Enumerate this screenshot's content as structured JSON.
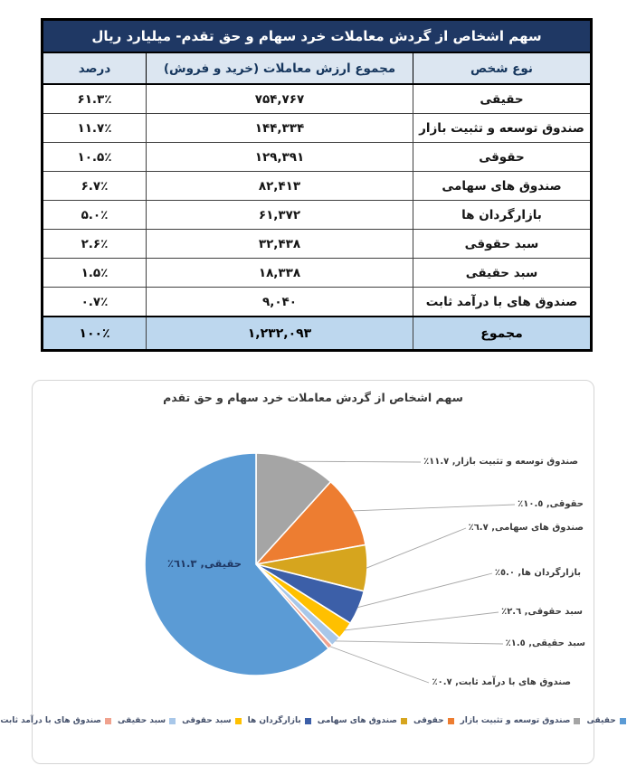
{
  "table": {
    "title": "سهم اشخاص از گردش معاملات خرد سهام و حق تقدم- میلیارد ریال",
    "title_bg": "#1F3864",
    "header_bg": "#DCE6F1",
    "header_color": "#17375E",
    "total_bg": "#BDD7EE",
    "columns": {
      "type": "نوع شخص",
      "value": "مجموع ارزش معاملات (خرید و فروش)",
      "percent": "درصد"
    },
    "rows": [
      {
        "type": "حقیقی",
        "value": "۷۵۴,۷۶۷",
        "percent": "۶۱.۳٪"
      },
      {
        "type": "صندوق توسعه و تثبیت بازار",
        "value": "۱۴۴,۳۳۴",
        "percent": "۱۱.۷٪"
      },
      {
        "type": "حقوقی",
        "value": "۱۲۹,۳۹۱",
        "percent": "۱۰.۵٪"
      },
      {
        "type": "صندوق های سهامی",
        "value": "۸۲,۴۱۳",
        "percent": "۶.۷٪"
      },
      {
        "type": "بازارگردان ها",
        "value": "۶۱,۳۷۲",
        "percent": "۵.۰٪"
      },
      {
        "type": "سبد حقوقی",
        "value": "۳۲,۴۳۸",
        "percent": "۲.۶٪"
      },
      {
        "type": "سبد حقیقی",
        "value": "۱۸,۳۳۸",
        "percent": "۱.۵٪"
      },
      {
        "type": "صندوق های با درآمد ثابت",
        "value": "۹,۰۴۰",
        "percent": "۰.۷٪"
      }
    ],
    "total": {
      "type": "مجموع",
      "value": "۱,۲۳۲,۰۹۳",
      "percent": "۱۰۰٪"
    }
  },
  "chart_data": {
    "type": "pie",
    "title": "سهم اشخاص از گردش معاملات خرد سهام و حق تقدم",
    "legend_position": "bottom",
    "start_angle_deg": 0,
    "direction": "clockwise-small-slices-first",
    "slices": [
      {
        "label": "حقیقی",
        "percent": 61.3,
        "value": 754767,
        "color": "#5B9BD5",
        "display": "حقیقی, ٦١.٣٪",
        "label_position": "inside"
      },
      {
        "label": "صندوق توسعه و تثبیت بازار",
        "percent": 11.7,
        "value": 144334,
        "color": "#A5A5A5",
        "display": "صندوق توسعه و تثبیت بازار, ١١.٧٪",
        "label_position": "outside"
      },
      {
        "label": "حقوقی",
        "percent": 10.5,
        "value": 129391,
        "color": "#ED7D31",
        "display": "حقوقی, ١٠.٥٪",
        "label_position": "outside"
      },
      {
        "label": "صندوق های سهامی",
        "percent": 6.7,
        "value": 82413,
        "color": "#D6A51E",
        "display": "صندوق های سهامی, ٦.٧٪",
        "label_position": "outside"
      },
      {
        "label": "بازارگردان ها",
        "percent": 5.0,
        "value": 61372,
        "color": "#3C5FA8",
        "display": "بازارگردان ها, ٥.٠٪",
        "label_position": "outside"
      },
      {
        "label": "سبد حقوقی",
        "percent": 2.6,
        "value": 32438,
        "color": "#FFC000",
        "display": "سبد حقوقی, ٢.٦٪",
        "label_position": "outside"
      },
      {
        "label": "سبد حقیقی",
        "percent": 1.5,
        "value": 18338,
        "color": "#A8C7E9",
        "display": "سبد حقیقی, ١.٥٪",
        "label_position": "outside"
      },
      {
        "label": "صندوق های با درآمد ثابت",
        "percent": 0.7,
        "value": 9040,
        "color": "#F0A28E",
        "display": "صندوق های با درآمد ثابت, ٠.٧٪",
        "label_position": "outside"
      }
    ]
  }
}
